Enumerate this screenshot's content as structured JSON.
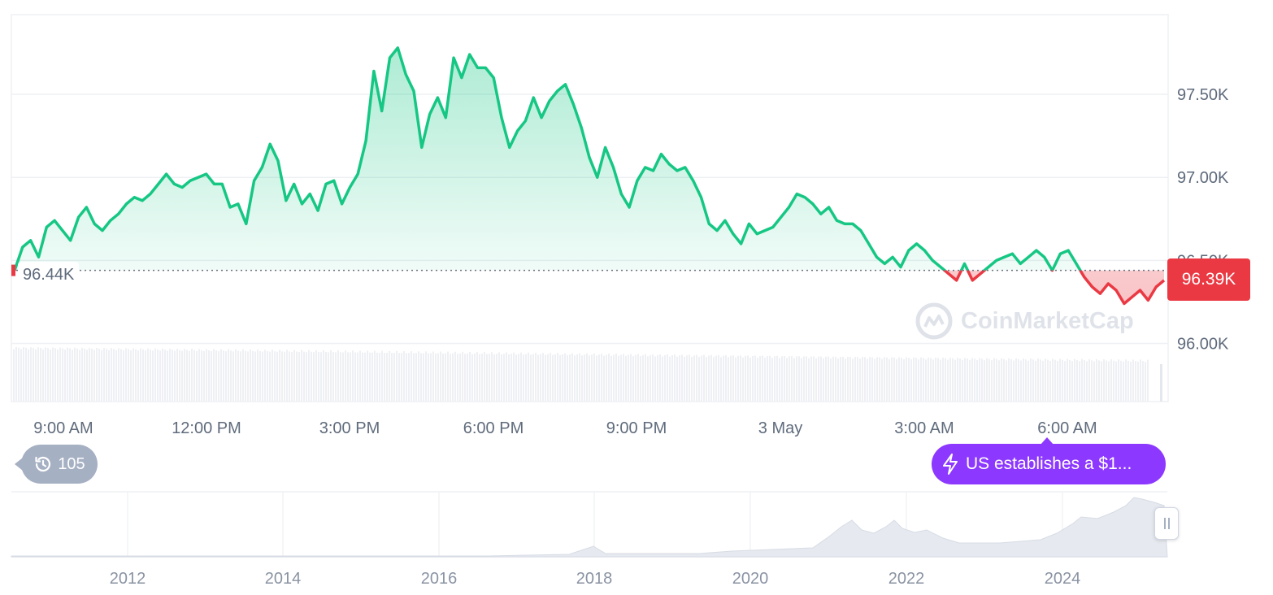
{
  "chart_data": {
    "type": "area",
    "baseline": 96.44,
    "last_value": 96.39,
    "y_unit": "K",
    "ylim": [
      95.65,
      97.98
    ],
    "y_ticks": [
      "97.50K",
      "97.00K",
      "96.50K",
      "96.00K"
    ],
    "x_ticks": [
      "9:00 AM",
      "12:00 PM",
      "3:00 PM",
      "6:00 PM",
      "9:00 PM",
      "3 May",
      "3:00 AM",
      "6:00 AM"
    ],
    "series": [
      {
        "values": [
          96.44,
          96.58,
          96.62,
          96.52,
          96.7,
          96.74,
          96.68,
          96.62,
          96.76,
          96.82,
          96.72,
          96.68,
          96.74,
          96.78,
          96.84,
          96.88,
          96.86,
          96.9,
          96.96,
          97.02,
          96.96,
          96.94,
          96.98,
          97.0,
          97.02,
          96.96,
          96.96,
          96.82,
          96.84,
          96.72,
          96.98,
          97.06,
          97.2,
          97.1,
          96.86,
          96.96,
          96.84,
          96.9,
          96.8,
          96.96,
          96.98,
          96.84,
          96.94,
          97.02,
          97.22,
          97.64,
          97.4,
          97.72,
          97.78,
          97.62,
          97.52,
          97.18,
          97.38,
          97.48,
          97.36,
          97.72,
          97.6,
          97.74,
          97.66,
          97.66,
          97.6,
          97.36,
          97.18,
          97.28,
          97.34,
          97.48,
          97.36,
          97.46,
          97.52,
          97.56,
          97.44,
          97.3,
          97.12,
          97.0,
          97.18,
          97.06,
          96.9,
          96.82,
          96.98,
          97.06,
          97.04,
          97.14,
          97.08,
          97.04,
          97.06,
          96.98,
          96.88,
          96.72,
          96.68,
          96.74,
          96.66,
          96.6,
          96.72,
          96.66,
          96.68,
          96.7,
          96.76,
          96.82,
          96.9,
          96.88,
          96.84,
          96.78,
          96.82,
          96.74,
          96.72,
          96.72,
          96.68,
          96.6,
          96.52,
          96.48,
          96.52,
          96.46,
          96.56,
          96.6,
          96.56,
          96.5,
          96.46,
          96.42,
          96.38,
          96.48,
          96.38,
          96.42,
          96.46,
          96.5,
          96.52,
          96.54,
          96.48,
          96.52,
          96.56,
          96.52,
          96.44,
          96.54,
          96.56,
          96.48,
          96.4,
          96.34,
          96.3,
          96.36,
          96.32,
          96.24,
          96.28,
          96.32,
          96.26,
          96.34,
          96.38
        ]
      }
    ],
    "navigator": {
      "x_ticks": [
        "2012",
        "2014",
        "2016",
        "2018",
        "2020",
        "2022",
        "2024"
      ]
    }
  },
  "labels": {
    "open_value": "96.44K",
    "last_price": "96.39K",
    "history_count": "105",
    "news_headline": "US establishes a $1...",
    "watermark": "CoinMarketCap"
  },
  "colors": {
    "up": "#16c784",
    "down": "#ea3943",
    "news": "#8c38ff",
    "history": "#a6b0c3"
  },
  "icons": {
    "history": "history-clock-icon",
    "news": "lightning-bolt-icon",
    "watermark": "coinmarketcap-logo-icon"
  }
}
